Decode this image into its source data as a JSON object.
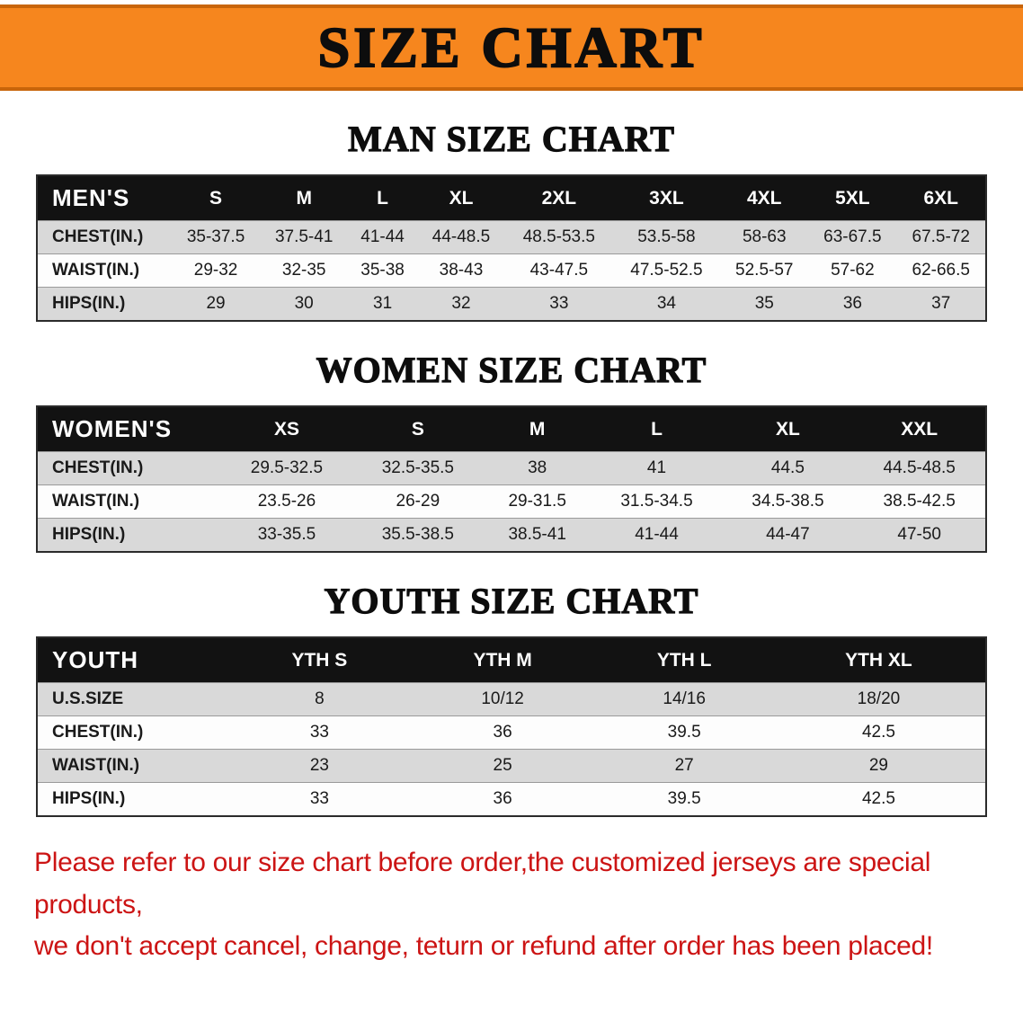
{
  "banner": {
    "title": "SIZE CHART"
  },
  "colors": {
    "banner-bg": "#F6861E",
    "banner-edge": "#C8650A",
    "table-header-bg": "#121212",
    "row-alt-bg": "#D9D9D9",
    "note-red": "#CC1414"
  },
  "men": {
    "heading": "MAN SIZE CHART",
    "table": {
      "header": [
        "MEN'S",
        "S",
        "M",
        "L",
        "XL",
        "2XL",
        "3XL",
        "4XL",
        "5XL",
        "6XL"
      ],
      "rows": [
        {
          "label": "CHEST(IN.)",
          "values": [
            "35-37.5",
            "37.5-41",
            "41-44",
            "44-48.5",
            "48.5-53.5",
            "53.5-58",
            "58-63",
            "63-67.5",
            "67.5-72"
          ]
        },
        {
          "label": "WAIST(IN.)",
          "values": [
            "29-32",
            "32-35",
            "35-38",
            "38-43",
            "43-47.5",
            "47.5-52.5",
            "52.5-57",
            "57-62",
            "62-66.5"
          ]
        },
        {
          "label": "HIPS(IN.)",
          "values": [
            "29",
            "30",
            "31",
            "32",
            "33",
            "34",
            "35",
            "36",
            "37"
          ]
        }
      ]
    }
  },
  "women": {
    "heading": "WOMEN SIZE CHART",
    "table": {
      "header": [
        "WOMEN'S",
        "XS",
        "S",
        "M",
        "L",
        "XL",
        "XXL"
      ],
      "rows": [
        {
          "label": "CHEST(IN.)",
          "values": [
            "29.5-32.5",
            "32.5-35.5",
            "38",
            "41",
            "44.5",
            "44.5-48.5"
          ]
        },
        {
          "label": "WAIST(IN.)",
          "values": [
            "23.5-26",
            "26-29",
            "29-31.5",
            "31.5-34.5",
            "34.5-38.5",
            "38.5-42.5"
          ]
        },
        {
          "label": "HIPS(IN.)",
          "values": [
            "33-35.5",
            "35.5-38.5",
            "38.5-41",
            "41-44",
            "44-47",
            "47-50"
          ]
        }
      ]
    }
  },
  "youth": {
    "heading": "YOUTH SIZE CHART",
    "table": {
      "header": [
        "YOUTH",
        "YTH S",
        "YTH M",
        "YTH L",
        "YTH XL"
      ],
      "rows": [
        {
          "label": "U.S.SIZE",
          "values": [
            "8",
            "10/12",
            "14/16",
            "18/20"
          ]
        },
        {
          "label": "CHEST(IN.)",
          "values": [
            "33",
            "36",
            "39.5",
            "42.5"
          ]
        },
        {
          "label": "WAIST(IN.)",
          "values": [
            "23",
            "25",
            "27",
            "29"
          ]
        },
        {
          "label": "HIPS(IN.)",
          "values": [
            "33",
            "36",
            "39.5",
            "42.5"
          ]
        }
      ]
    }
  },
  "note": {
    "line1": "Please refer to our size chart before order,the customized jerseys are special products,",
    "line2": "we don't accept cancel, change, teturn or refund after order has been placed!"
  }
}
